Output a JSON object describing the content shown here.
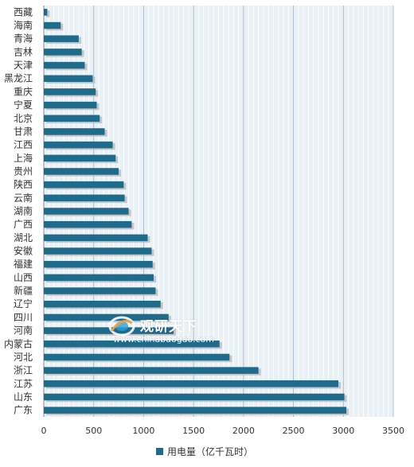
{
  "chart_data": {
    "type": "bar",
    "orientation": "horizontal",
    "categories": [
      "西藏",
      "海南",
      "青海",
      "吉林",
      "天津",
      "黑龙江",
      "重庆",
      "宁夏",
      "北京",
      "甘肃",
      "江西",
      "上海",
      "贵州",
      "陕西",
      "云南",
      "湖南",
      "广西",
      "湖北",
      "安徽",
      "福建",
      "山西",
      "新疆",
      "辽宁",
      "四川",
      "河南",
      "内蒙古",
      "河北",
      "浙江",
      "江苏",
      "山东",
      "广东"
    ],
    "series": [
      {
        "name": "用电量（亿千瓦时）",
        "color": "#1f6b8c",
        "values": [
          35,
          170,
          350,
          380,
          410,
          490,
          520,
          530,
          560,
          610,
          690,
          720,
          750,
          800,
          810,
          850,
          880,
          1040,
          1080,
          1090,
          1100,
          1120,
          1170,
          1250,
          1300,
          1760,
          1860,
          2150,
          2950,
          3010,
          3030
        ]
      }
    ],
    "xlabel": "",
    "ylabel": "",
    "xlim": [
      0,
      3500
    ],
    "xticks": [
      "0",
      "500",
      "1000",
      "1500",
      "2000",
      "2500",
      "3000",
      "3500"
    ],
    "grid": "vertical",
    "legend": "bottom"
  },
  "legend_label": "用电量（亿千瓦时）",
  "watermark": {
    "name_cn": "观研天下",
    "url": "www.chinabaogao.com"
  }
}
